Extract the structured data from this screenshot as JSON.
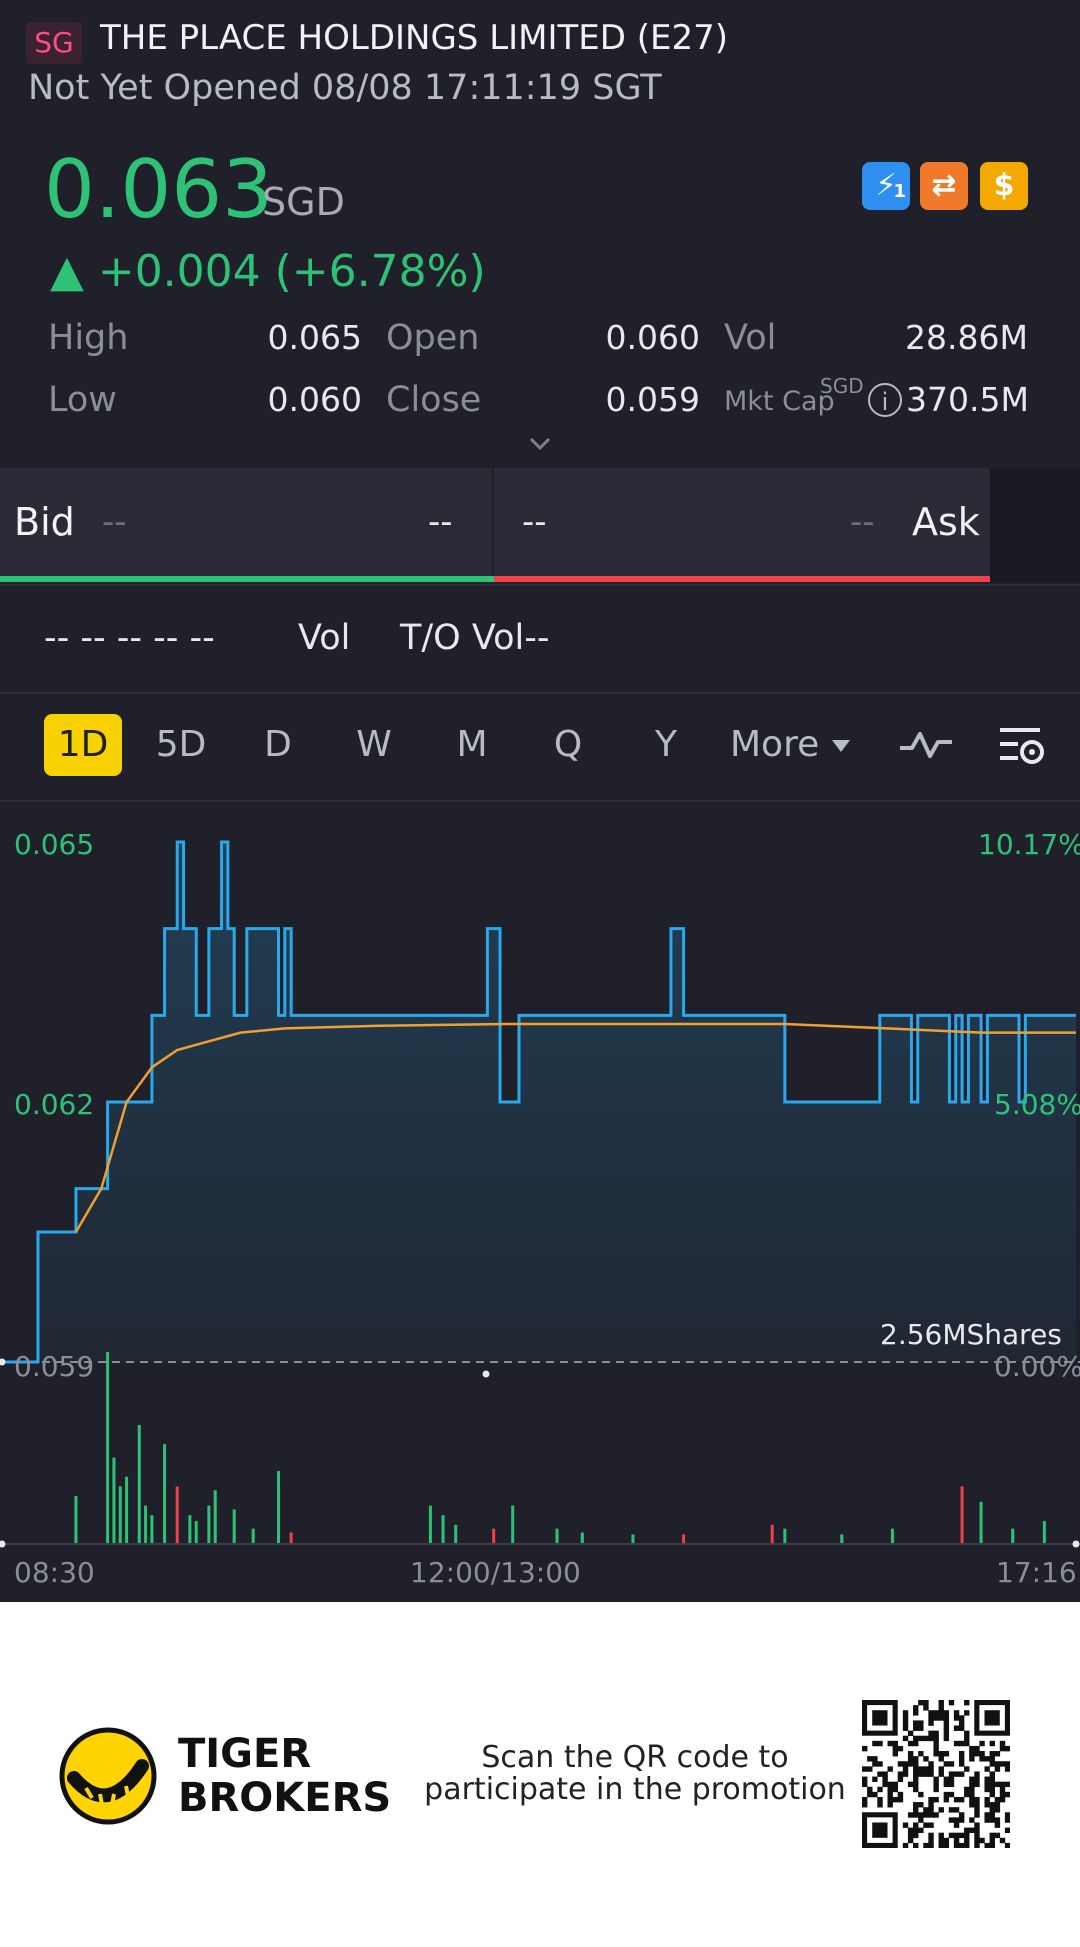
{
  "header": {
    "market_badge": "SG",
    "title": "THE PLACE HOLDINGS LIMITED (E27)",
    "status": "Not Yet Opened 08/08 17:11:19 SGT"
  },
  "quote": {
    "price": "0.063",
    "currency": "SGD",
    "change": "▲ +0.004 (+6.78%)",
    "stats": {
      "high_label": "High",
      "high": "0.065",
      "low_label": "Low",
      "low": "0.060",
      "open_label": "Open",
      "open": "0.060",
      "close_label": "Close",
      "close": "0.059",
      "vol_label": "Vol",
      "vol": "28.86M",
      "mktcap_label": "Mkt Cap",
      "mktcap_currency": "SGD",
      "mktcap": "370.5M"
    },
    "badges": [
      {
        "icon": "lightning-icon",
        "text": "⚡",
        "sub": "1",
        "color": "#2f8ff0"
      },
      {
        "icon": "swap-icon",
        "text": "⇄",
        "color": "#f07a2a"
      },
      {
        "icon": "dollar-icon",
        "text": "$",
        "color": "#f5a800"
      }
    ]
  },
  "orderbook": {
    "bid_label": "Bid",
    "bid_price": "--",
    "bid_size": "--",
    "ask_price": "--",
    "ask_size": "--",
    "ask_label": "Ask"
  },
  "trades": {
    "dashes": "-- -- -- -- --",
    "vol_label": "Vol",
    "to_vol_label": "T/O Vol--"
  },
  "timeframes": [
    "1D",
    "5D",
    "D",
    "W",
    "M",
    "Q",
    "Y"
  ],
  "active_timeframe": "1D",
  "more_label": "More",
  "colors": {
    "up": "#2ec277",
    "down": "#f0424c",
    "price_line": "#29a9ec",
    "avg_line": "#f0a030",
    "accent": "#f7d100"
  },
  "chart_data": {
    "type": "line",
    "title": "",
    "y_left_ticks": [
      "0.065",
      "0.062",
      "0.059"
    ],
    "y_right_ticks": [
      "10.17%",
      "5.08%",
      "0.00%"
    ],
    "x_ticks": [
      "08:30",
      "12:00/13:00",
      "17:16"
    ],
    "ylim": [
      0.059,
      0.065
    ],
    "prev_close": 0.059,
    "volume_label": "2.56MShares",
    "series": [
      {
        "role": "price",
        "points": [
          [
            0,
            0.059
          ],
          [
            6,
            0.059
          ],
          [
            6,
            0.0605
          ],
          [
            12,
            0.0605
          ],
          [
            12,
            0.061
          ],
          [
            17,
            0.061
          ],
          [
            17,
            0.062
          ],
          [
            24,
            0.062
          ],
          [
            24,
            0.063
          ],
          [
            26,
            0.063
          ],
          [
            26,
            0.064
          ],
          [
            28,
            0.064
          ],
          [
            28,
            0.065
          ],
          [
            29,
            0.065
          ],
          [
            29,
            0.064
          ],
          [
            31,
            0.064
          ],
          [
            31,
            0.063
          ],
          [
            33,
            0.063
          ],
          [
            33,
            0.064
          ],
          [
            35,
            0.064
          ],
          [
            35,
            0.065
          ],
          [
            36,
            0.065
          ],
          [
            36,
            0.064
          ],
          [
            37,
            0.064
          ],
          [
            37,
            0.063
          ],
          [
            39,
            0.063
          ],
          [
            39,
            0.064
          ],
          [
            44,
            0.064
          ],
          [
            44,
            0.063
          ],
          [
            45,
            0.063
          ],
          [
            45,
            0.064
          ],
          [
            46,
            0.064
          ],
          [
            46,
            0.063
          ],
          [
            77,
            0.063
          ],
          [
            77,
            0.064
          ],
          [
            79,
            0.064
          ],
          [
            79,
            0.062
          ],
          [
            82,
            0.062
          ],
          [
            82,
            0.063
          ],
          [
            106,
            0.063
          ],
          [
            106,
            0.064
          ],
          [
            108,
            0.064
          ],
          [
            108,
            0.063
          ],
          [
            124,
            0.063
          ],
          [
            124,
            0.062
          ],
          [
            139,
            0.062
          ],
          [
            139,
            0.063
          ],
          [
            144,
            0.063
          ],
          [
            144,
            0.062
          ],
          [
            145,
            0.062
          ],
          [
            145,
            0.063
          ],
          [
            150,
            0.063
          ],
          [
            150,
            0.062
          ],
          [
            151,
            0.062
          ],
          [
            151,
            0.063
          ],
          [
            152,
            0.063
          ],
          [
            152,
            0.062
          ],
          [
            153,
            0.062
          ],
          [
            153,
            0.063
          ],
          [
            155,
            0.063
          ],
          [
            155,
            0.062
          ],
          [
            156,
            0.062
          ],
          [
            156,
            0.063
          ],
          [
            161,
            0.063
          ],
          [
            161,
            0.062
          ],
          [
            162,
            0.062
          ],
          [
            162,
            0.063
          ],
          [
            170,
            0.063
          ]
        ]
      },
      {
        "role": "average",
        "points": [
          [
            12,
            0.0605
          ],
          [
            16,
            0.061
          ],
          [
            18,
            0.0615
          ],
          [
            20,
            0.062
          ],
          [
            24,
            0.0624
          ],
          [
            28,
            0.0626
          ],
          [
            33,
            0.0627
          ],
          [
            38,
            0.0628
          ],
          [
            45,
            0.06285
          ],
          [
            60,
            0.06288
          ],
          [
            80,
            0.0629
          ],
          [
            110,
            0.0629
          ],
          [
            124,
            0.0629
          ],
          [
            140,
            0.06285
          ],
          [
            155,
            0.0628
          ],
          [
            170,
            0.0628
          ]
        ]
      }
    ],
    "volume_bars": [
      {
        "x": 12,
        "v": 0.25,
        "up": true
      },
      {
        "x": 17,
        "v": 1.0,
        "up": true
      },
      {
        "x": 18,
        "v": 0.45,
        "up": true
      },
      {
        "x": 19,
        "v": 0.3,
        "up": true
      },
      {
        "x": 20,
        "v": 0.35,
        "up": true
      },
      {
        "x": 22,
        "v": 0.62,
        "up": true
      },
      {
        "x": 23,
        "v": 0.2,
        "up": true
      },
      {
        "x": 24,
        "v": 0.15,
        "up": true
      },
      {
        "x": 26,
        "v": 0.52,
        "up": true
      },
      {
        "x": 28,
        "v": 0.3,
        "up": false
      },
      {
        "x": 30,
        "v": 0.15,
        "up": true
      },
      {
        "x": 31,
        "v": 0.12,
        "up": true
      },
      {
        "x": 33,
        "v": 0.2,
        "up": true
      },
      {
        "x": 34,
        "v": 0.28,
        "up": true
      },
      {
        "x": 37,
        "v": 0.18,
        "up": true
      },
      {
        "x": 40,
        "v": 0.08,
        "up": true
      },
      {
        "x": 44,
        "v": 0.38,
        "up": true
      },
      {
        "x": 46,
        "v": 0.06,
        "up": false
      },
      {
        "x": 68,
        "v": 0.2,
        "up": true
      },
      {
        "x": 70,
        "v": 0.15,
        "up": true
      },
      {
        "x": 72,
        "v": 0.1,
        "up": true
      },
      {
        "x": 78,
        "v": 0.08,
        "up": false
      },
      {
        "x": 81,
        "v": 0.2,
        "up": true
      },
      {
        "x": 88,
        "v": 0.08,
        "up": true
      },
      {
        "x": 92,
        "v": 0.06,
        "up": true
      },
      {
        "x": 100,
        "v": 0.05,
        "up": true
      },
      {
        "x": 108,
        "v": 0.05,
        "up": false
      },
      {
        "x": 122,
        "v": 0.1,
        "up": false
      },
      {
        "x": 124,
        "v": 0.08,
        "up": true
      },
      {
        "x": 133,
        "v": 0.05,
        "up": true
      },
      {
        "x": 141,
        "v": 0.08,
        "up": true
      },
      {
        "x": 152,
        "v": 0.3,
        "up": false
      },
      {
        "x": 155,
        "v": 0.22,
        "up": true
      },
      {
        "x": 160,
        "v": 0.08,
        "up": true
      },
      {
        "x": 165,
        "v": 0.12,
        "up": true
      }
    ]
  },
  "footer": {
    "brand_line1": "TIGER",
    "brand_line2": "BROKERS",
    "promo_line1": "Scan the QR code to",
    "promo_line2": "participate in the promotion"
  }
}
